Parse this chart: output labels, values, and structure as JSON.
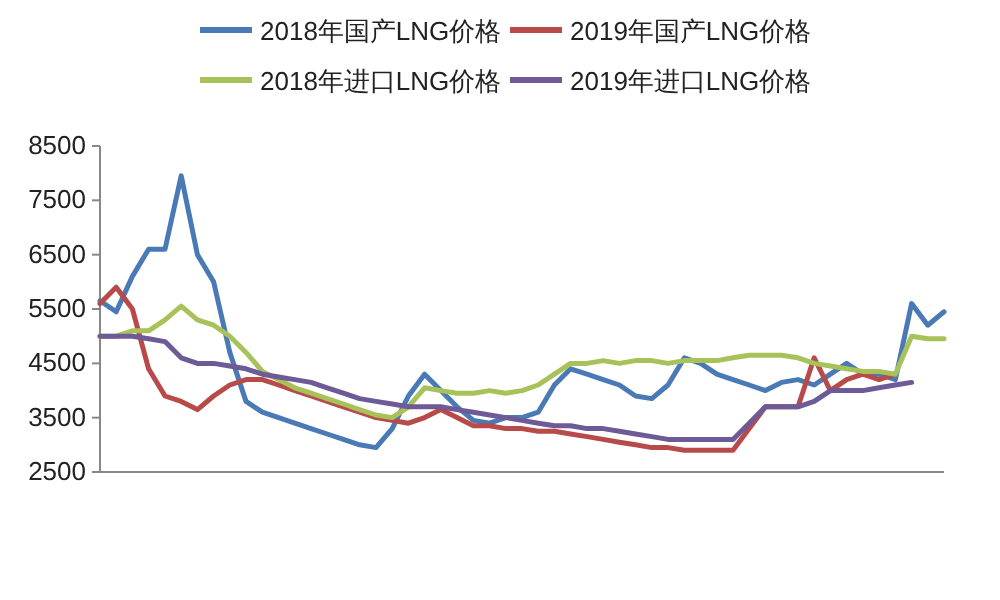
{
  "chart_data": {
    "type": "line",
    "categories": [
      null,
      null,
      null,
      null,
      null,
      null,
      null,
      null,
      null,
      null,
      null,
      null,
      null,
      null,
      null,
      null,
      null,
      null,
      null,
      null,
      null,
      null,
      null,
      null,
      null,
      null,
      null,
      null,
      null,
      null,
      null,
      null,
      null,
      null,
      null,
      null,
      null,
      null,
      null,
      null,
      null,
      null,
      null,
      null,
      null,
      null,
      null,
      null,
      null,
      null,
      null,
      null,
      null
    ],
    "ylim": [
      2500,
      8500
    ],
    "yticks": [
      2500,
      3500,
      4500,
      5500,
      6500,
      7500,
      8500
    ],
    "grid": false,
    "legend": "top",
    "marker": "none",
    "line_style": "solid",
    "series": [
      {
        "name": "2018年国产LNG价格",
        "color": "#4a7ab5",
        "values": [
          5650,
          5450,
          6100,
          6600,
          6600,
          7950,
          6500,
          6000,
          4700,
          3800,
          3600,
          3500,
          3400,
          3300,
          3200,
          3100,
          3000,
          2950,
          3300,
          3900,
          4300,
          4000,
          3700,
          3450,
          3400,
          3500,
          3500,
          3600,
          4100,
          4400,
          4300,
          4200,
          4100,
          3900,
          3850,
          4100,
          4600,
          4500,
          4300,
          4200,
          4100,
          4000,
          4150,
          4200,
          4100,
          4300,
          4500,
          4300,
          4300,
          4200,
          5600,
          5200,
          5450
        ]
      },
      {
        "name": "2019年国产LNG价格",
        "color": "#b84a4a",
        "values": [
          5600,
          5900,
          5500,
          4400,
          3900,
          3800,
          3650,
          3900,
          4100,
          4200,
          4200,
          4100,
          4000,
          3900,
          3800,
          3700,
          3600,
          3500,
          3450,
          3400,
          3500,
          3650,
          3500,
          3350,
          3350,
          3300,
          3300,
          3250,
          3250,
          3200,
          3150,
          3100,
          3050,
          3000,
          2950,
          2950,
          2900,
          2900,
          2900,
          2900,
          3300,
          3700,
          3700,
          3700,
          4600,
          4000,
          4200,
          4300,
          4200,
          4300,
          null,
          null,
          null
        ]
      },
      {
        "name": "2018年进口LNG价格",
        "color": "#a8c25a",
        "values": [
          5000,
          5000,
          5100,
          5100,
          5300,
          5550,
          5300,
          5200,
          5000,
          4700,
          4350,
          4200,
          4050,
          3950,
          3850,
          3750,
          3650,
          3550,
          3500,
          3700,
          4050,
          4000,
          3950,
          3950,
          4000,
          3950,
          4000,
          4100,
          4300,
          4500,
          4500,
          4550,
          4500,
          4550,
          4550,
          4500,
          4550,
          4550,
          4550,
          4600,
          4650,
          4650,
          4650,
          4600,
          4500,
          4450,
          4400,
          4350,
          4350,
          4300,
          5000,
          4950,
          4950
        ]
      },
      {
        "name": "2019年进口LNG价格",
        "color": "#6d5a96",
        "values": [
          5000,
          5000,
          5000,
          4950,
          4900,
          4600,
          4500,
          4500,
          4450,
          4400,
          4300,
          4250,
          4200,
          4150,
          4050,
          3950,
          3850,
          3800,
          3750,
          3700,
          3700,
          3700,
          3650,
          3600,
          3550,
          3500,
          3450,
          3400,
          3350,
          3350,
          3300,
          3300,
          3250,
          3200,
          3150,
          3100,
          3100,
          3100,
          3100,
          3100,
          3400,
          3700,
          3700,
          3700,
          3800,
          4000,
          4000,
          4000,
          4050,
          4100,
          4150,
          null,
          null
        ]
      }
    ]
  }
}
